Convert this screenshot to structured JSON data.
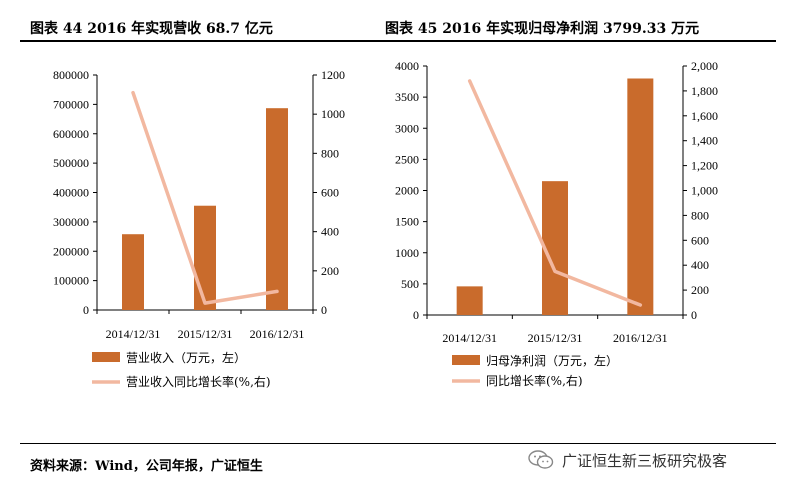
{
  "titles": {
    "left": "图表 44   2016 年实现营收 68.7 亿元",
    "right": "图表 45 2016 年实现归母净利润 3799.33 万元"
  },
  "source": "资料来源：Wind，公司年报，广证恒生",
  "watermark": "广证恒生新三板研究极客",
  "colors": {
    "bar": "#C96B2C",
    "line": "#F2B8A0"
  },
  "chart_data": [
    {
      "type": "bar",
      "categories": [
        "2014/12/31",
        "2015/12/31",
        "2016/12/31"
      ],
      "series": [
        {
          "name": "营业收入（万元，左）",
          "type": "bar",
          "axis": "left",
          "values": [
            258000,
            355000,
            687000
          ]
        },
        {
          "name": "营业收入同比增长率(%,右)",
          "type": "line",
          "axis": "right",
          "values": [
            1110,
            35,
            95
          ]
        }
      ],
      "ylim_left": [
        0,
        800000
      ],
      "yticks_left": [
        0,
        100000,
        200000,
        300000,
        400000,
        500000,
        600000,
        700000,
        800000
      ],
      "yticks_left_labels": [
        "0",
        "100000",
        "200000",
        "300000",
        "400000",
        "500000",
        "600000",
        "700000",
        "800000"
      ],
      "ylim_right": [
        0,
        1200
      ],
      "yticks_right": [
        0,
        200,
        400,
        600,
        800,
        1000,
        1200
      ],
      "yticks_right_labels": [
        "0",
        "200",
        "400",
        "600",
        "800",
        "1000",
        "1200"
      ],
      "grid": false,
      "legend": "bottom"
    },
    {
      "type": "bar",
      "categories": [
        "2014/12/31",
        "2015/12/31",
        "2016/12/31"
      ],
      "series": [
        {
          "name": "归母净利润（万元，左）",
          "type": "bar",
          "axis": "left",
          "values": [
            460,
            2150,
            3799.33
          ]
        },
        {
          "name": "同比增长率(%,右)",
          "type": "line",
          "axis": "right",
          "values": [
            1880,
            350,
            80
          ]
        }
      ],
      "ylim_left": [
        0,
        4000
      ],
      "yticks_left": [
        0,
        500,
        1000,
        1500,
        2000,
        2500,
        3000,
        3500,
        4000
      ],
      "yticks_left_labels": [
        "0",
        "500",
        "1000",
        "1500",
        "2000",
        "2500",
        "3000",
        "3500",
        "4000"
      ],
      "ylim_right": [
        0,
        2000
      ],
      "yticks_right": [
        0,
        200,
        400,
        600,
        800,
        1000,
        1200,
        1400,
        1600,
        1800,
        2000
      ],
      "yticks_right_labels": [
        "0",
        "200",
        "400",
        "600",
        "800",
        "1,000",
        "1,200",
        "1,400",
        "1,600",
        "1,800",
        "2,000"
      ],
      "grid": false,
      "legend": "bottom"
    }
  ]
}
